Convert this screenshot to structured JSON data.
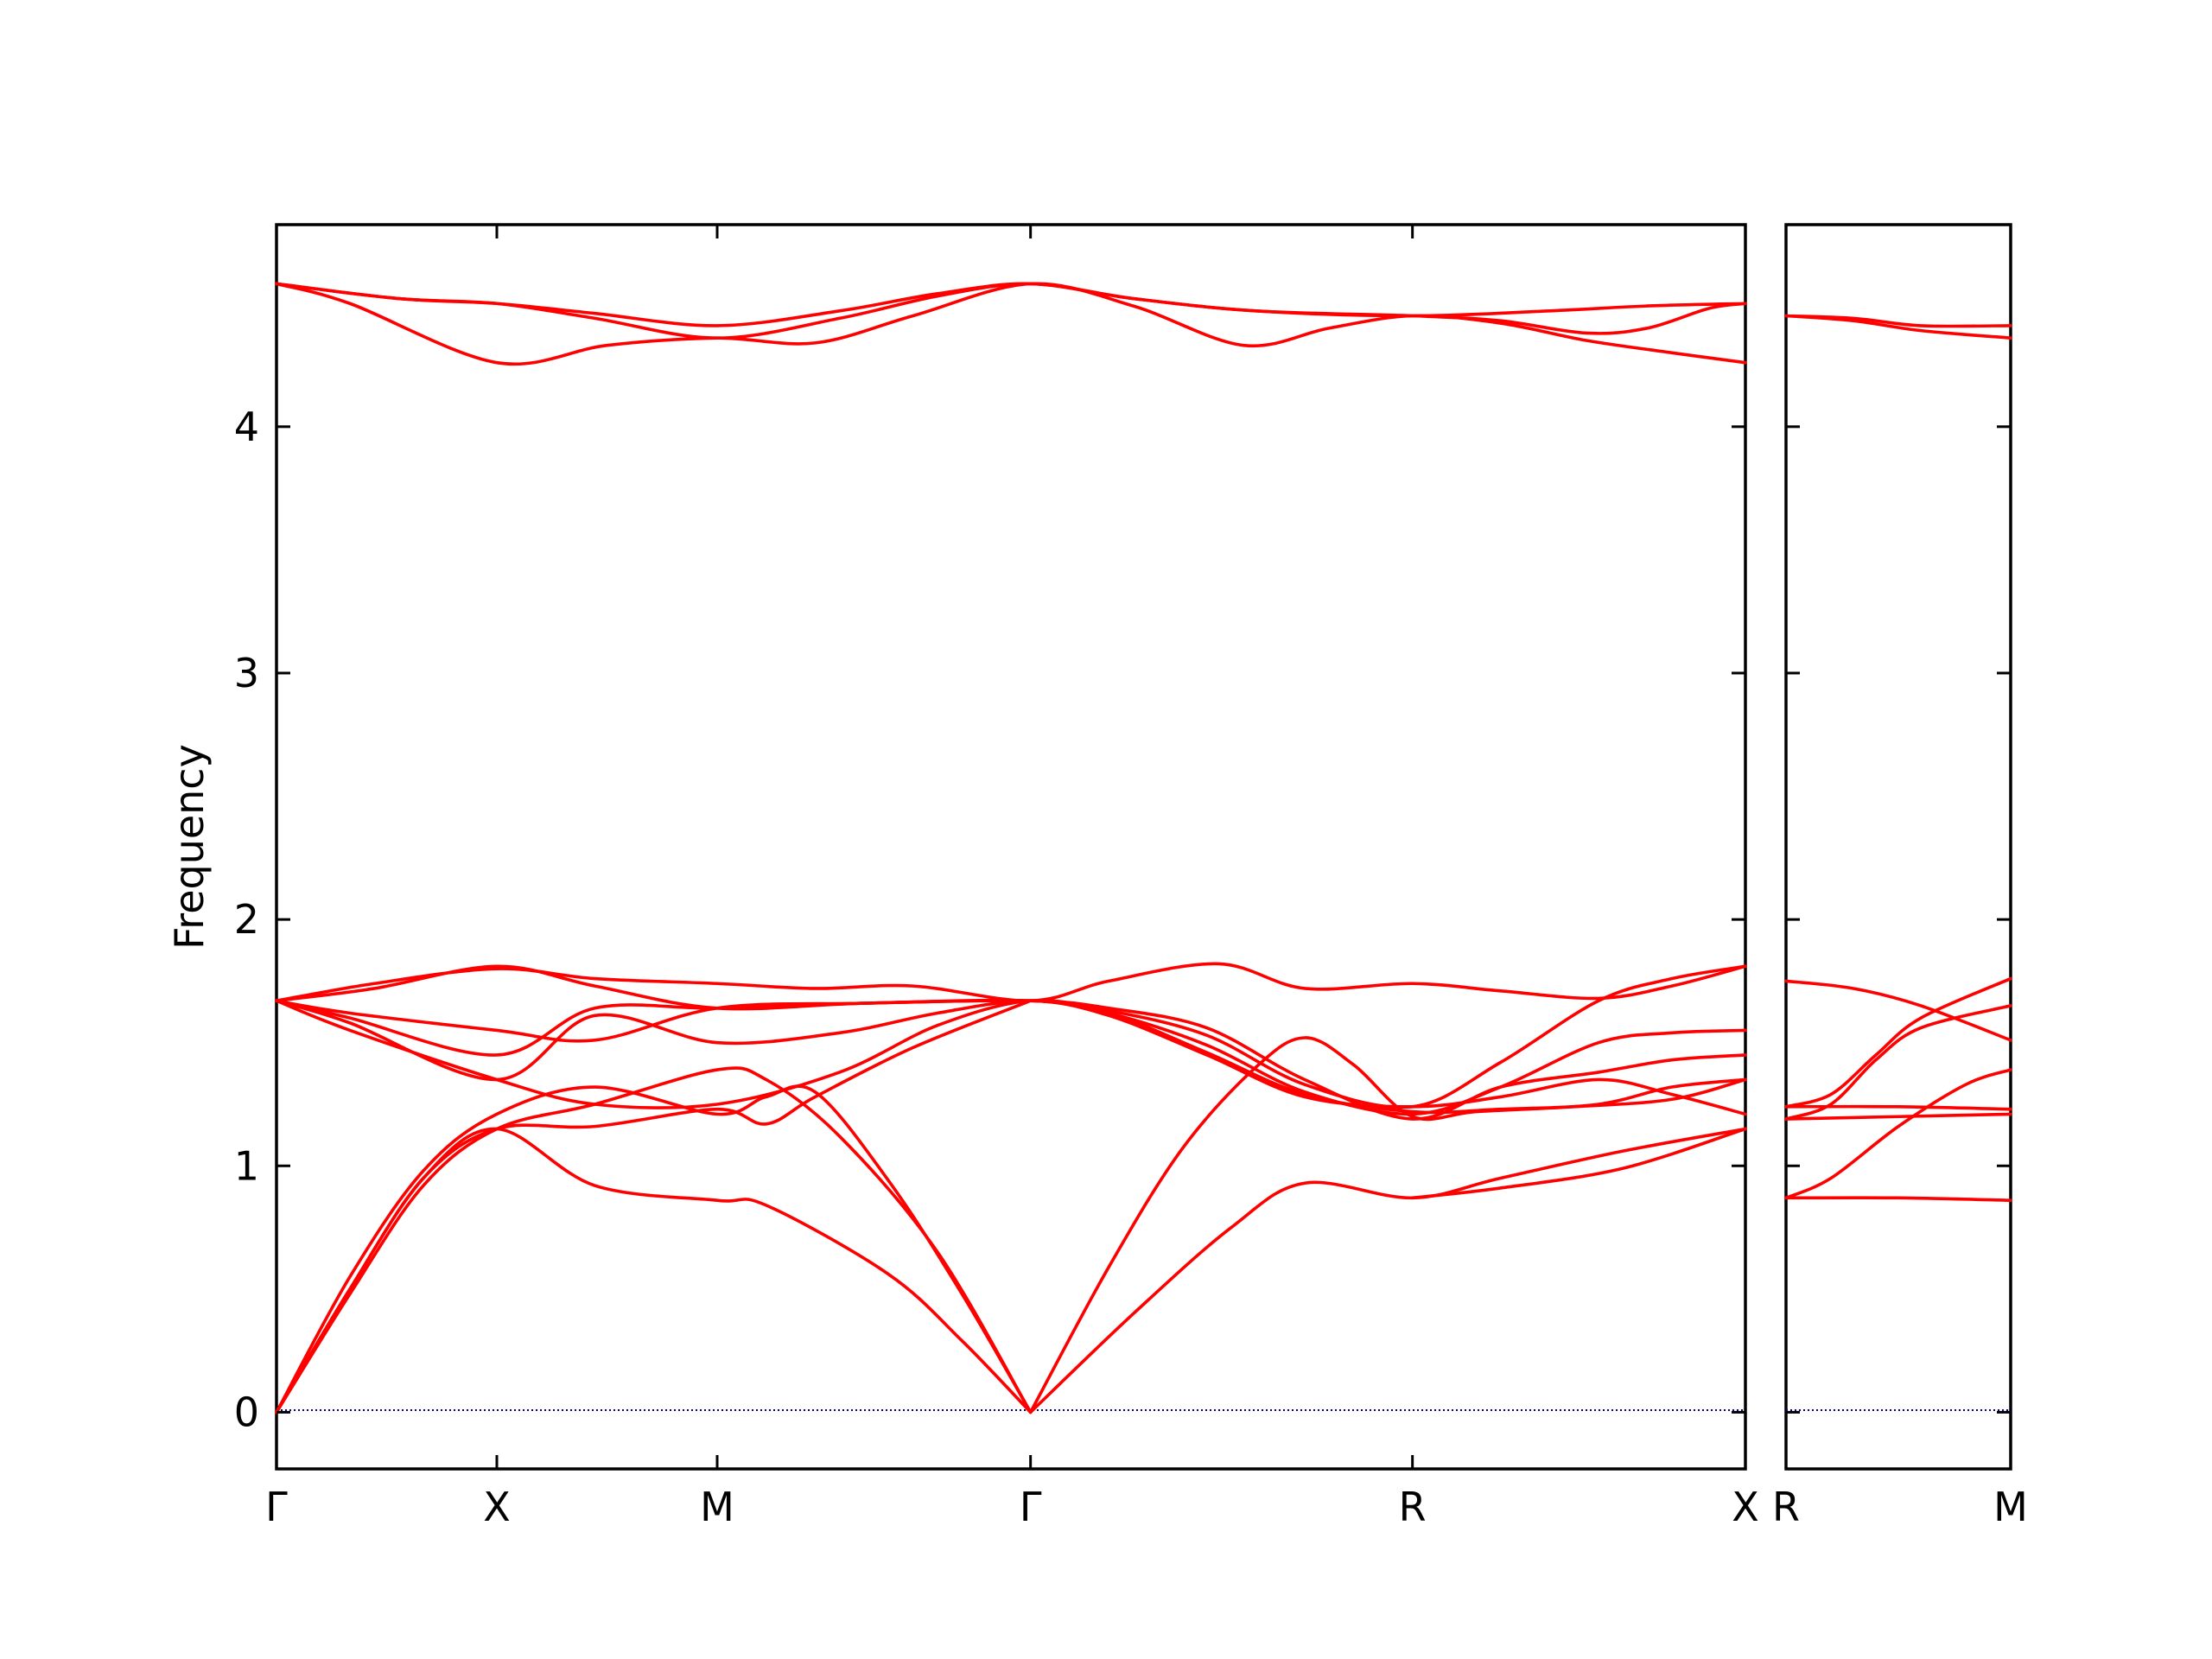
{
  "chart_data": {
    "type": "line",
    "title": "",
    "ylabel": "Frequency",
    "xlabel": "",
    "ylim": [
      -0.23,
      4.82
    ],
    "y_ticks": [
      0,
      1,
      2,
      3,
      4
    ],
    "grid": false,
    "colors": {
      "band": "#ff0000",
      "zero_line": "#00008b",
      "frame": "#000000"
    },
    "panels": [
      {
        "name": "left",
        "xlim": [
          0,
          6
        ],
        "x_ticks": [
          {
            "x": 0,
            "label": "Γ"
          },
          {
            "x": 0.9,
            "label": "X"
          },
          {
            "x": 1.8,
            "label": "M"
          },
          {
            "x": 3.08,
            "label": "Γ"
          },
          {
            "x": 4.64,
            "label": "R"
          },
          {
            "x": 6,
            "label": "X"
          }
        ],
        "bands": [
          [
            [
              0,
              4.58
            ],
            [
              0.3,
              4.5
            ],
            [
              0.9,
              4.26
            ],
            [
              1.35,
              4.33
            ],
            [
              1.8,
              4.36
            ],
            [
              2.2,
              4.34
            ],
            [
              2.6,
              4.45
            ],
            [
              3.08,
              4.58
            ],
            [
              3.5,
              4.49
            ],
            [
              3.95,
              4.33
            ],
            [
              4.3,
              4.4
            ],
            [
              4.64,
              4.45
            ],
            [
              5.0,
              4.42
            ],
            [
              5.35,
              4.35
            ],
            [
              5.7,
              4.3
            ],
            [
              6,
              4.26
            ]
          ],
          [
            [
              0,
              4.58
            ],
            [
              0.5,
              4.52
            ],
            [
              0.9,
              4.5
            ],
            [
              1.3,
              4.44
            ],
            [
              1.8,
              4.36
            ],
            [
              2.3,
              4.44
            ],
            [
              2.7,
              4.53
            ],
            [
              3.08,
              4.58
            ],
            [
              3.5,
              4.52
            ],
            [
              4.0,
              4.47
            ],
            [
              4.64,
              4.45
            ],
            [
              5.0,
              4.43
            ],
            [
              5.35,
              4.38
            ],
            [
              5.6,
              4.4
            ],
            [
              5.85,
              4.48
            ],
            [
              6,
              4.5
            ]
          ],
          [
            [
              0,
              4.58
            ],
            [
              0.5,
              4.52
            ],
            [
              0.9,
              4.5
            ],
            [
              1.3,
              4.46
            ],
            [
              1.8,
              4.41
            ],
            [
              2.3,
              4.47
            ],
            [
              2.7,
              4.54
            ],
            [
              3.08,
              4.58
            ],
            [
              3.5,
              4.52
            ],
            [
              4.0,
              4.47
            ],
            [
              4.64,
              4.45
            ],
            [
              5.2,
              4.47
            ],
            [
              5.6,
              4.49
            ],
            [
              6,
              4.5
            ]
          ],
          [
            [
              0,
              1.67
            ],
            [
              0.4,
              1.74
            ],
            [
              0.9,
              1.8
            ],
            [
              1.3,
              1.76
            ],
            [
              1.8,
              1.74
            ],
            [
              2.2,
              1.72
            ],
            [
              2.6,
              1.73
            ],
            [
              3.08,
              1.67
            ],
            [
              3.4,
              1.75
            ],
            [
              3.85,
              1.82
            ],
            [
              4.2,
              1.72
            ],
            [
              4.64,
              1.74
            ],
            [
              5.0,
              1.71
            ],
            [
              5.4,
              1.68
            ],
            [
              5.7,
              1.73
            ],
            [
              6,
              1.81
            ]
          ],
          [
            [
              0,
              1.67
            ],
            [
              0.4,
              1.72
            ],
            [
              0.9,
              1.81
            ],
            [
              1.3,
              1.73
            ],
            [
              1.8,
              1.64
            ],
            [
              2.4,
              1.66
            ],
            [
              3.08,
              1.67
            ],
            [
              3.4,
              1.63
            ],
            [
              3.8,
              1.53
            ],
            [
              4.2,
              1.33
            ],
            [
              4.64,
              1.24
            ],
            [
              5.0,
              1.42
            ],
            [
              5.4,
              1.67
            ],
            [
              5.7,
              1.76
            ],
            [
              6,
              1.81
            ]
          ],
          [
            [
              0,
              1.67
            ],
            [
              0.3,
              1.62
            ],
            [
              0.9,
              1.55
            ],
            [
              1.3,
              1.51
            ],
            [
              1.8,
              1.64
            ],
            [
              2.4,
              1.66
            ],
            [
              3.08,
              1.67
            ],
            [
              3.4,
              1.62
            ],
            [
              3.8,
              1.49
            ],
            [
              4.2,
              1.3
            ],
            [
              4.64,
              1.21
            ],
            [
              5.0,
              1.32
            ],
            [
              5.4,
              1.5
            ],
            [
              5.7,
              1.54
            ],
            [
              6,
              1.55
            ]
          ],
          [
            [
              0,
              1.67
            ],
            [
              0.3,
              1.6
            ],
            [
              0.9,
              1.45
            ],
            [
              1.3,
              1.64
            ],
            [
              1.8,
              1.64
            ],
            [
              2.4,
              1.66
            ],
            [
              3.08,
              1.67
            ],
            [
              3.4,
              1.64
            ],
            [
              3.8,
              1.56
            ],
            [
              4.2,
              1.35
            ],
            [
              4.64,
              1.19
            ],
            [
              5.0,
              1.32
            ],
            [
              5.4,
              1.38
            ],
            [
              5.7,
              1.43
            ],
            [
              6,
              1.45
            ]
          ],
          [
            [
              0,
              1.67
            ],
            [
              0.3,
              1.58
            ],
            [
              0.9,
              1.35
            ],
            [
              1.3,
              1.61
            ],
            [
              1.8,
              1.5
            ],
            [
              2.3,
              1.54
            ],
            [
              2.7,
              1.62
            ],
            [
              3.08,
              1.67
            ],
            [
              3.4,
              1.61
            ],
            [
              3.8,
              1.45
            ],
            [
              4.2,
              1.28
            ],
            [
              4.64,
              1.24
            ],
            [
              5.0,
              1.28
            ],
            [
              5.4,
              1.35
            ],
            [
              5.7,
              1.29
            ],
            [
              6,
              1.21
            ]
          ],
          [
            [
              0,
              1.67
            ],
            [
              0.3,
              1.55
            ],
            [
              0.9,
              1.35
            ],
            [
              1.3,
              1.25
            ],
            [
              1.8,
              1.25
            ],
            [
              2.3,
              1.38
            ],
            [
              2.7,
              1.57
            ],
            [
              3.08,
              1.67
            ],
            [
              3.4,
              1.62
            ],
            [
              3.8,
              1.46
            ],
            [
              4.2,
              1.29
            ],
            [
              4.64,
              1.22
            ],
            [
              5.0,
              1.23
            ],
            [
              5.4,
              1.25
            ],
            [
              5.7,
              1.32
            ],
            [
              6,
              1.35
            ]
          ],
          [
            [
              0,
              0
            ],
            [
              0.3,
              0.55
            ],
            [
              0.6,
              0.98
            ],
            [
              0.9,
              1.21
            ],
            [
              1.3,
              1.32
            ],
            [
              1.8,
              1.21
            ],
            [
              2.0,
              1.28
            ],
            [
              2.2,
              1.3
            ],
            [
              2.5,
              0.94
            ],
            [
              2.8,
              0.48
            ],
            [
              3.08,
              0
            ]
          ],
          [
            [
              0,
              0
            ],
            [
              0.3,
              0.48
            ],
            [
              0.6,
              0.92
            ],
            [
              0.9,
              1.15
            ],
            [
              1.3,
              1.25
            ],
            [
              1.8,
              1.39
            ],
            [
              2.0,
              1.35
            ],
            [
              2.3,
              1.12
            ],
            [
              2.7,
              0.65
            ],
            [
              3.08,
              0
            ]
          ],
          [
            [
              0,
              0
            ],
            [
              0.3,
              0.5
            ],
            [
              0.6,
              0.95
            ],
            [
              0.9,
              1.15
            ],
            [
              1.3,
              1.16
            ],
            [
              1.8,
              1.23
            ],
            [
              2.0,
              1.17
            ],
            [
              2.2,
              1.28
            ],
            [
              2.6,
              1.48
            ],
            [
              3.08,
              1.67
            ]
          ],
          [
            [
              0,
              0
            ],
            [
              0.3,
              0.5
            ],
            [
              0.6,
              0.95
            ],
            [
              0.9,
              1.15
            ],
            [
              1.3,
              0.92
            ],
            [
              1.8,
              0.86
            ],
            [
              2.0,
              0.84
            ],
            [
              2.5,
              0.56
            ],
            [
              2.8,
              0.29
            ],
            [
              3.08,
              0
            ]
          ],
          [
            [
              3.08,
              0
            ],
            [
              3.4,
              0.59
            ],
            [
              3.7,
              1.07
            ],
            [
              4.0,
              1.4
            ],
            [
              4.2,
              1.52
            ],
            [
              4.4,
              1.41
            ],
            [
              4.64,
              1.2
            ],
            [
              4.9,
              1.22
            ],
            [
              5.3,
              1.24
            ],
            [
              5.7,
              1.27
            ],
            [
              6,
              1.35
            ]
          ],
          [
            [
              3.08,
              0
            ],
            [
              3.5,
              0.4
            ],
            [
              3.9,
              0.75
            ],
            [
              4.2,
              0.93
            ],
            [
              4.64,
              0.87
            ],
            [
              5.0,
              0.95
            ],
            [
              5.5,
              1.06
            ],
            [
              6,
              1.15
            ]
          ],
          [
            [
              4.64,
              0.87
            ],
            [
              5.0,
              0.91
            ],
            [
              5.5,
              0.99
            ],
            [
              6,
              1.15
            ]
          ]
        ]
      },
      {
        "name": "right",
        "xlim": [
          0,
          1
        ],
        "x_ticks": [
          {
            "x": 0,
            "label": "R"
          },
          {
            "x": 1,
            "label": "M"
          }
        ],
        "bands": [
          [
            [
              0,
              4.45
            ],
            [
              0.3,
              4.44
            ],
            [
              0.6,
              4.41
            ],
            [
              1,
              4.41
            ]
          ],
          [
            [
              0,
              4.45
            ],
            [
              0.3,
              4.43
            ],
            [
              0.6,
              4.39
            ],
            [
              1,
              4.36
            ]
          ],
          [
            [
              0,
              1.75
            ],
            [
              0.3,
              1.72
            ],
            [
              0.6,
              1.65
            ],
            [
              1,
              1.51
            ]
          ],
          [
            [
              0,
              1.24
            ],
            [
              0.2,
              1.29
            ],
            [
              0.4,
              1.45
            ],
            [
              0.6,
              1.6
            ],
            [
              1,
              1.76
            ]
          ],
          [
            [
              0,
              1.19
            ],
            [
              0.2,
              1.25
            ],
            [
              0.4,
              1.43
            ],
            [
              0.6,
              1.56
            ],
            [
              1,
              1.65
            ]
          ],
          [
            [
              0,
              1.24
            ],
            [
              0.5,
              1.24
            ],
            [
              1,
              1.23
            ]
          ],
          [
            [
              0,
              1.19
            ],
            [
              0.5,
              1.2
            ],
            [
              1,
              1.21
            ]
          ],
          [
            [
              0,
              0.87
            ],
            [
              0.2,
              0.95
            ],
            [
              0.5,
              1.16
            ],
            [
              0.8,
              1.33
            ],
            [
              1,
              1.39
            ]
          ],
          [
            [
              0,
              0.87
            ],
            [
              0.5,
              0.87
            ],
            [
              1,
              0.86
            ]
          ]
        ]
      }
    ]
  }
}
